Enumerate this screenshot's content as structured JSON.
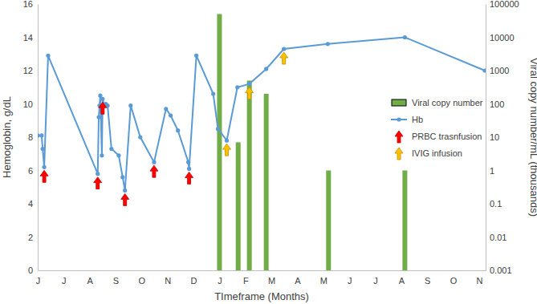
{
  "chart_data": {
    "type": "line",
    "x_label": "TImeframe (Months)",
    "y_label": "Hemoglobin, g/dL",
    "y2_label": "Viral copy number/mL (thousands)",
    "xlim": [
      0,
      17.25
    ],
    "xticks": [
      {
        "value": 0,
        "label": "J"
      },
      {
        "value": 1,
        "label": "J"
      },
      {
        "value": 2,
        "label": "A"
      },
      {
        "value": 3,
        "label": "S"
      },
      {
        "value": 4,
        "label": "O"
      },
      {
        "value": 5,
        "label": "N"
      },
      {
        "value": 6,
        "label": "D"
      },
      {
        "value": 7,
        "label": "J"
      },
      {
        "value": 8,
        "label": "F"
      },
      {
        "value": 9,
        "label": "M"
      },
      {
        "value": 10,
        "label": "A"
      },
      {
        "value": 11,
        "label": "M"
      },
      {
        "value": 12,
        "label": "J"
      },
      {
        "value": 13,
        "label": "J"
      },
      {
        "value": 14,
        "label": "A"
      },
      {
        "value": 15,
        "label": "S"
      },
      {
        "value": 16,
        "label": "O"
      },
      {
        "value": 17,
        "label": "N"
      }
    ],
    "ylim": [
      0,
      16
    ],
    "yticks": [
      0,
      2,
      4,
      6,
      8,
      10,
      12,
      14,
      16
    ],
    "y2lim": [
      0.001,
      100000
    ],
    "y2ticks": [
      0.001,
      0.01,
      0.1,
      1,
      10,
      100,
      1000,
      10000,
      100000
    ],
    "log": "y2",
    "grid": false,
    "legend": "upper right",
    "series": [
      {
        "name": "Viral copy number",
        "type": "bar",
        "axis": "y2",
        "color": "#70ad47",
        "x": [
          7.0,
          7.72,
          8.15,
          8.8,
          11.2,
          14.14
        ],
        "values": [
          50000,
          7,
          500,
          200,
          1,
          1
        ]
      },
      {
        "name": "Hb",
        "type": "line",
        "color": "#5b9bd5",
        "marker": "circle",
        "x": [
          0,
          0.15,
          0.19,
          0.25,
          0.4,
          2.31,
          2.35,
          2.38,
          2.41,
          2.47,
          2.5,
          2.56,
          2.62,
          2.69,
          2.84,
          3.12,
          3.27,
          3.36,
          3.58,
          3.95,
          4.48,
          4.94,
          5.12,
          5.4,
          5.8,
          5.83,
          6.11,
          6.76,
          6.94,
          7.28,
          7.69,
          8.15,
          8.8,
          9.48,
          11.17,
          14.14,
          17.22
        ],
        "values": [
          8.1,
          8.1,
          7.3,
          6.2,
          12.9,
          5.8,
          9.2,
          9.9,
          10.5,
          6.9,
          10.3,
          9.9,
          10.0,
          9.9,
          7.3,
          6.9,
          5.6,
          4.8,
          9.9,
          8.0,
          6.5,
          9.7,
          9.3,
          8.4,
          6.5,
          6.1,
          12.9,
          10.6,
          8.5,
          7.8,
          11.0,
          11.2,
          12.1,
          13.3,
          13.6,
          14.0,
          12.0
        ]
      },
      {
        "name": "PRBC trasnfusion",
        "type": "arrow",
        "color": "#ff0000",
        "x": [
          0.25,
          2.31,
          2.5,
          3.36,
          4.48,
          5.83
        ]
      },
      {
        "name": "IVIG infusion",
        "type": "arrow",
        "color": "#ffc000",
        "x": [
          7.28,
          8.15,
          9.48
        ]
      }
    ]
  }
}
